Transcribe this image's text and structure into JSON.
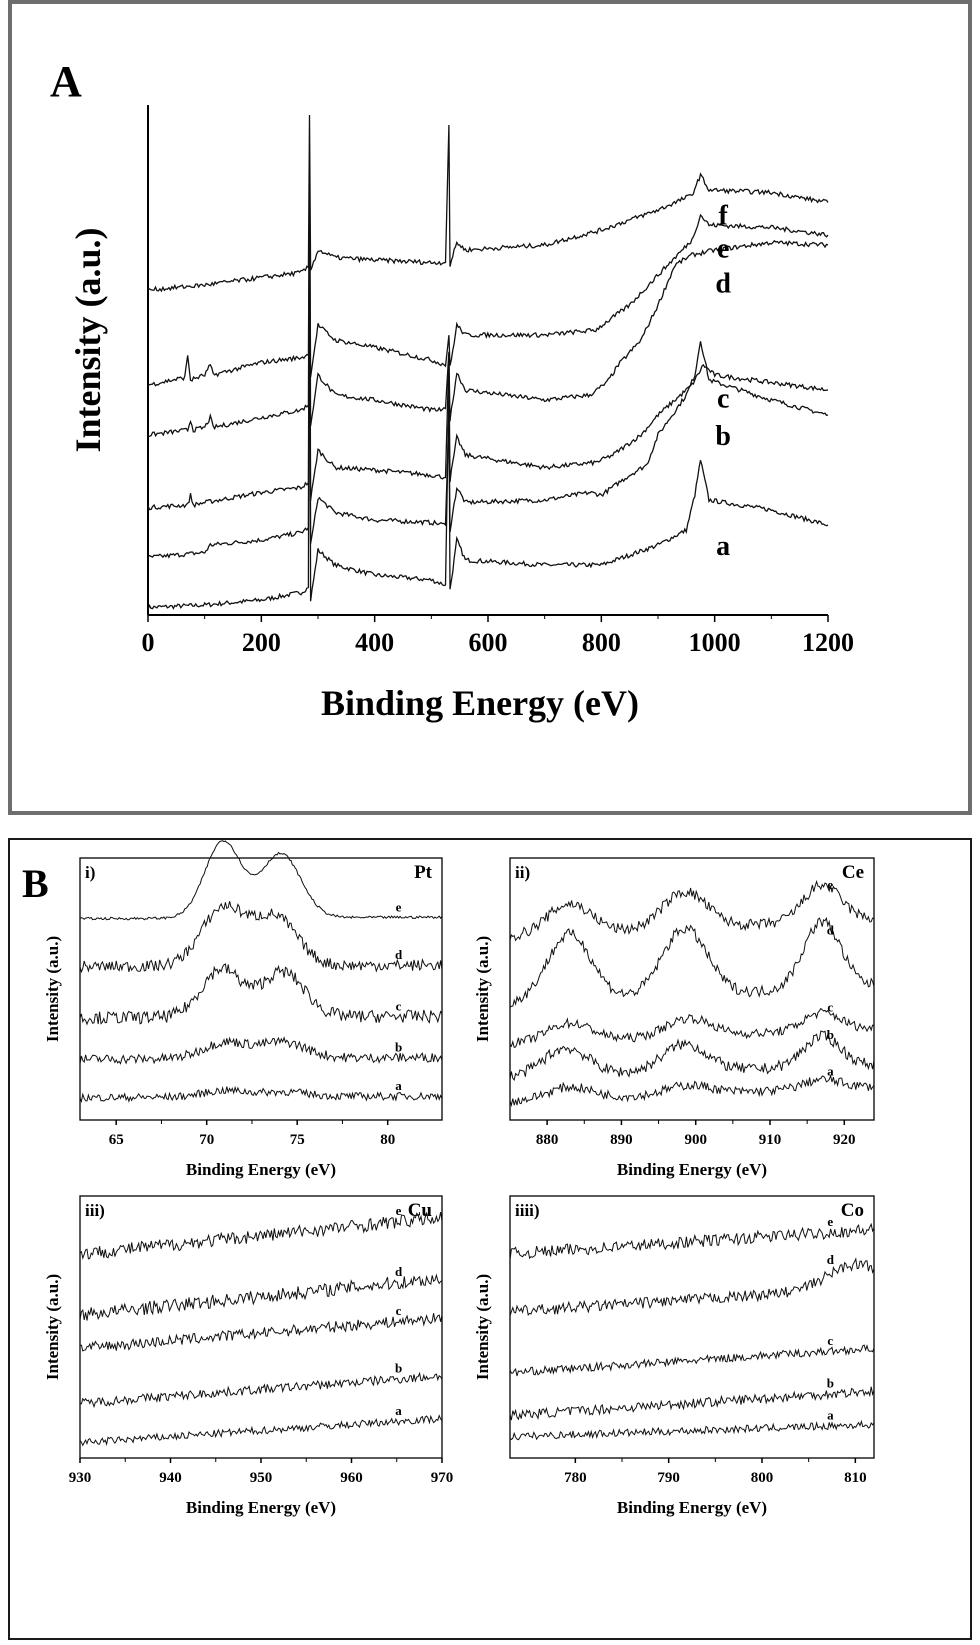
{
  "chart_data": [
    {
      "panel": "A",
      "type": "line",
      "xlabel": "Binding Energy (eV)",
      "ylabel": "Intensity (a.u.)",
      "xlim": [
        0,
        1200
      ],
      "xticks": [
        0,
        200,
        400,
        600,
        800,
        1000,
        1200
      ],
      "y_ticks_shown": false,
      "series": [
        {
          "name": "a",
          "points": [
            [
              0,
              1.5
            ],
            [
              100,
              2.0
            ],
            [
              200,
              3.0
            ],
            [
              270,
              4.5
            ],
            [
              283,
              5.5
            ],
            [
              285,
              90
            ],
            [
              287,
              3.0
            ],
            [
              300,
              13.0
            ],
            [
              330,
              10.0
            ],
            [
              400,
              8.0
            ],
            [
              500,
              7.0
            ],
            [
              525,
              6.0
            ],
            [
              531,
              45
            ],
            [
              533,
              5.0
            ],
            [
              545,
              15.0
            ],
            [
              560,
              11.0
            ],
            [
              700,
              10.0
            ],
            [
              800,
              10.0
            ],
            [
              900,
              14.0
            ],
            [
              950,
              17.0
            ],
            [
              965,
              24.0
            ],
            [
              975,
              31.0
            ],
            [
              990,
              23.0
            ],
            [
              1100,
              21.0
            ],
            [
              1200,
              18.0
            ]
          ]
        },
        {
          "name": "b",
          "points": [
            [
              0,
              11.5
            ],
            [
              100,
              12.5
            ],
            [
              110,
              14.0
            ],
            [
              200,
              15.0
            ],
            [
              270,
              16.5
            ],
            [
              283,
              17.5
            ],
            [
              285,
              90
            ],
            [
              287,
              14.0
            ],
            [
              300,
              23.5
            ],
            [
              330,
              20.5
            ],
            [
              400,
              19.0
            ],
            [
              500,
              18.5
            ],
            [
              525,
              18.0
            ],
            [
              531,
              40
            ],
            [
              533,
              17.0
            ],
            [
              545,
              25.5
            ],
            [
              560,
              22.5
            ],
            [
              700,
              23.0
            ],
            [
              780,
              24.5
            ],
            [
              800,
              24.0
            ],
            [
              850,
              28.0
            ],
            [
              880,
              30.0
            ],
            [
              900,
              36.0
            ],
            [
              950,
              44.0
            ],
            [
              965,
              48.0
            ],
            [
              975,
              55.0
            ],
            [
              990,
              47.0
            ],
            [
              1100,
              43.0
            ],
            [
              1200,
              40.0
            ]
          ]
        },
        {
          "name": "c",
          "points": [
            [
              0,
              21.5
            ],
            [
              70,
              22.0
            ],
            [
              75,
              24.0
            ],
            [
              80,
              22.0
            ],
            [
              100,
              22.5
            ],
            [
              200,
              24.5
            ],
            [
              270,
              25.5
            ],
            [
              283,
              26.5
            ],
            [
              285,
              90
            ],
            [
              287,
              23.0
            ],
            [
              300,
              33.0
            ],
            [
              330,
              29.5
            ],
            [
              400,
              29.0
            ],
            [
              500,
              28.0
            ],
            [
              525,
              27.5
            ],
            [
              531,
              52
            ],
            [
              533,
              27.0
            ],
            [
              545,
              35.5
            ],
            [
              560,
              32.0
            ],
            [
              700,
              29.5
            ],
            [
              790,
              30.5
            ],
            [
              820,
              32.0
            ],
            [
              870,
              36.0
            ],
            [
              900,
              40.0
            ],
            [
              960,
              46.0
            ],
            [
              980,
              50.0
            ],
            [
              1000,
              48.0
            ],
            [
              1100,
              46.5
            ],
            [
              1200,
              45.0
            ]
          ]
        },
        {
          "name": "d",
          "points": [
            [
              0,
              36.0
            ],
            [
              70,
              37.0
            ],
            [
              75,
              39.0
            ],
            [
              80,
              37.0
            ],
            [
              100,
              37.5
            ],
            [
              110,
              39.5
            ],
            [
              115,
              37.5
            ],
            [
              200,
              39.5
            ],
            [
              270,
              41.0
            ],
            [
              283,
              42.0
            ],
            [
              285,
              90
            ],
            [
              287,
              38.0
            ],
            [
              300,
              48.0
            ],
            [
              330,
              44.0
            ],
            [
              400,
              43.0
            ],
            [
              500,
              41.0
            ],
            [
              525,
              41.0
            ],
            [
              531,
              53
            ],
            [
              533,
              39.0
            ],
            [
              545,
              48.5
            ],
            [
              560,
              45.0
            ],
            [
              700,
              43.0
            ],
            [
              780,
              44.0
            ],
            [
              810,
              46.5
            ],
            [
              830,
              50.0
            ],
            [
              870,
              55.0
            ],
            [
              900,
              62.0
            ],
            [
              930,
              70.0
            ],
            [
              960,
              72.0
            ],
            [
              1000,
              73.0
            ],
            [
              1100,
              74.5
            ],
            [
              1200,
              74.0
            ]
          ]
        },
        {
          "name": "e",
          "points": [
            [
              0,
              46.0
            ],
            [
              65,
              47.5
            ],
            [
              70,
              52.0
            ],
            [
              75,
              47.0
            ],
            [
              100,
              48.0
            ],
            [
              110,
              50.0
            ],
            [
              115,
              48.0
            ],
            [
              200,
              50.5
            ],
            [
              270,
              51.5
            ],
            [
              283,
              52.0
            ],
            [
              285,
              90
            ],
            [
              287,
              48.0
            ],
            [
              300,
              58.0
            ],
            [
              330,
              55.0
            ],
            [
              400,
              53.5
            ],
            [
              500,
              51.0
            ],
            [
              525,
              50.0
            ],
            [
              531,
              56
            ],
            [
              533,
              49.5
            ],
            [
              545,
              58.0
            ],
            [
              560,
              56.0
            ],
            [
              700,
              56.0
            ],
            [
              790,
              57.0
            ],
            [
              850,
              62.0
            ],
            [
              900,
              68.0
            ],
            [
              960,
              75.0
            ],
            [
              975,
              80.0
            ],
            [
              990,
              78.0
            ],
            [
              1100,
              77.5
            ],
            [
              1200,
              76.0
            ]
          ]
        },
        {
          "name": "f",
          "points": [
            [
              0,
              65.0
            ],
            [
              100,
              66.0
            ],
            [
              200,
              67.5
            ],
            [
              270,
              68.5
            ],
            [
              283,
              69.5
            ],
            [
              285,
              100
            ],
            [
              287,
              69.0
            ],
            [
              300,
              73.0
            ],
            [
              330,
              71.5
            ],
            [
              400,
              71.0
            ],
            [
              500,
              70.5
            ],
            [
              525,
              70.5
            ],
            [
              531,
              98
            ],
            [
              533,
              70.0
            ],
            [
              545,
              74.5
            ],
            [
              560,
              73.0
            ],
            [
              700,
              74.0
            ],
            [
              800,
              77.0
            ],
            [
              900,
              81.0
            ],
            [
              960,
              84.0
            ],
            [
              975,
              88.0
            ],
            [
              990,
              85.0
            ],
            [
              1100,
              84.5
            ],
            [
              1200,
              82.5
            ]
          ]
        }
      ]
    },
    {
      "panel": "B-i",
      "type": "line",
      "label": "i)",
      "element": "Pt",
      "xlabel": "Binding Energy (eV)",
      "ylabel": "Intensity (a.u.)",
      "xlim": [
        63,
        83
      ],
      "xticks": [
        65,
        70,
        75,
        80
      ],
      "series": [
        {
          "name": "a",
          "baseline": 5,
          "slope": 0.5,
          "noise": 1.2,
          "peaks": [
            [
              71,
              2,
              1.2
            ],
            [
              74.3,
              1.5,
              1.3
            ]
          ]
        },
        {
          "name": "b",
          "baseline": 17,
          "slope": 0.6,
          "noise": 1.5,
          "peaks": [
            [
              71,
              5,
              1.2
            ],
            [
              74.2,
              5,
              1.3
            ]
          ]
        },
        {
          "name": "c",
          "baseline": 30,
          "slope": 0.5,
          "noise": 2.0,
          "peaks": [
            [
              70.8,
              15,
              1.1
            ],
            [
              74.2,
              14,
              1.2
            ]
          ]
        },
        {
          "name": "d",
          "baseline": 46,
          "slope": 0.5,
          "noise": 1.8,
          "peaks": [
            [
              70.9,
              18,
              1.2
            ],
            [
              73.8,
              15,
              1.2
            ]
          ]
        },
        {
          "name": "e",
          "baseline": 61,
          "slope": 0.5,
          "noise": 0.4,
          "peaks": [
            [
              70.9,
              24,
              1.0
            ],
            [
              74.1,
              20,
              1.1
            ]
          ]
        }
      ]
    },
    {
      "panel": "B-ii",
      "type": "line",
      "label": "ii)",
      "element": "Ce",
      "xlabel": "Binding Energy (eV)",
      "ylabel": "Intensity (a.u.)",
      "xlim": [
        875,
        924
      ],
      "xticks": [
        880,
        890,
        900,
        910,
        920
      ],
      "series": [
        {
          "name": "a",
          "baseline": 4,
          "slope": 5,
          "noise": 1.5,
          "peaks": [
            [
              883,
              4,
              3
            ],
            [
              899,
              3,
              3
            ],
            [
              917,
              3,
              2.5
            ]
          ]
        },
        {
          "name": "b",
          "baseline": 12,
          "slope": 4,
          "noise": 1.8,
          "peaks": [
            [
              882.5,
              9,
              3
            ],
            [
              898.5,
              9,
              3
            ],
            [
              917,
              10,
              2.5
            ]
          ]
        },
        {
          "name": "c",
          "baseline": 23,
          "slope": 5,
          "noise": 1.5,
          "peaks": [
            [
              883,
              6,
              3
            ],
            [
              899,
              6,
              3
            ],
            [
              917,
              6,
              2.5
            ]
          ]
        },
        {
          "name": "d",
          "baseline": 36,
          "slope": 6,
          "noise": 1.8,
          "peaks": [
            [
              883,
              22,
              3
            ],
            [
              898.5,
              22,
              3
            ],
            [
              917,
              22,
              2.5
            ]
          ]
        },
        {
          "name": "e",
          "baseline": 58,
          "slope": 6,
          "noise": 1.8,
          "peaks": [
            [
              883,
              10,
              3
            ],
            [
              898.5,
              12,
              3
            ],
            [
              917,
              12,
              2.5
            ]
          ]
        }
      ]
    },
    {
      "panel": "B-iii",
      "type": "line",
      "label": "iii)",
      "element": "Cu",
      "xlabel": "Binding Energy (eV)",
      "ylabel": "Intensity (a.u.)",
      "xlim": [
        930,
        970
      ],
      "xticks": [
        930,
        940,
        950,
        960,
        970
      ],
      "series": [
        {
          "name": "a",
          "baseline": 3,
          "slope": 8,
          "noise": 1.2,
          "peaks": []
        },
        {
          "name": "b",
          "baseline": 16,
          "slope": 9,
          "noise": 1.5,
          "peaks": []
        },
        {
          "name": "c",
          "baseline": 34,
          "slope": 10,
          "noise": 1.8,
          "peaks": []
        },
        {
          "name": "d",
          "baseline": 45,
          "slope": 12,
          "noise": 2.2,
          "peaks": []
        },
        {
          "name": "e",
          "baseline": 65,
          "slope": 12,
          "noise": 2.2,
          "peaks": []
        }
      ]
    },
    {
      "panel": "B-iv",
      "type": "line",
      "label": "iiii)",
      "element": "Co",
      "xlabel": "Binding Energy (eV)",
      "ylabel": "Intensity (a.u.)",
      "xlim": [
        773,
        812
      ],
      "xticks": [
        780,
        790,
        800,
        810
      ],
      "series": [
        {
          "name": "a",
          "baseline": 5,
          "slope": 4,
          "noise": 1.2,
          "peaks": []
        },
        {
          "name": "b",
          "baseline": 12,
          "slope": 8,
          "noise": 1.6,
          "peaks": []
        },
        {
          "name": "c",
          "baseline": 26,
          "slope": 8,
          "noise": 1.3,
          "peaks": []
        },
        {
          "name": "d",
          "baseline": 46,
          "slope": 8,
          "noise": 1.8,
          "peaks": [
            [
              810,
              8,
              3
            ]
          ]
        },
        {
          "name": "e",
          "baseline": 65,
          "slope": 8,
          "noise": 2.0,
          "peaks": []
        }
      ]
    }
  ],
  "panel_labels": {
    "A": "A",
    "B": "B"
  }
}
